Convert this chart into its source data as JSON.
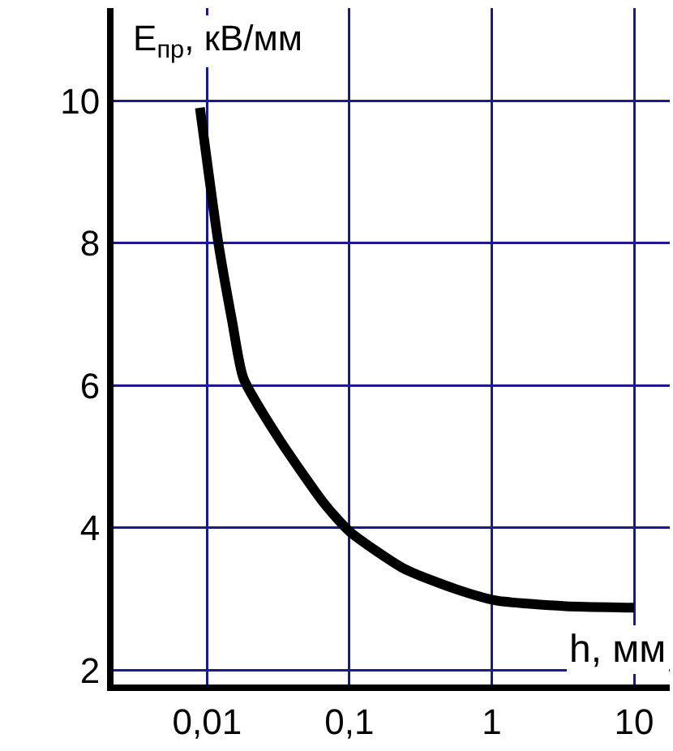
{
  "chart_data": {
    "type": "line",
    "xlabel": "h, мм",
    "ylabel": "E$_{пр}$, кВ/мм",
    "log": "x",
    "grid": true,
    "marker": "none",
    "line_style": "solid",
    "x": [
      0.0089,
      0.012,
      0.015,
      0.018,
      0.032,
      0.066,
      0.1,
      0.24,
      0.56,
      1.07,
      3.3,
      10
    ],
    "series": [
      {
        "color": "#000000",
        "values": [
          9.9,
          8.0,
          6.9,
          6.1,
          5.25,
          4.35,
          3.95,
          3.43,
          3.14,
          2.98,
          2.9,
          2.88
        ]
      }
    ],
    "xlim": [
      0.0022,
      17.8
    ],
    "xticks": [
      {
        "value": 0.01,
        "label": "0,01"
      },
      {
        "value": 0.1,
        "label": "0,1"
      },
      1,
      10
    ],
    "ylim": [
      1.8,
      11.3
    ],
    "yticks": [
      2,
      4,
      6,
      8,
      10
    ]
  }
}
